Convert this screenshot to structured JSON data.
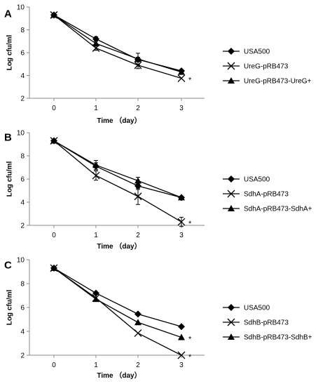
{
  "chart_data": [
    {
      "type": "line",
      "panel_label": "A",
      "xlabel": "Time （day）",
      "ylabel": "Log cfu/ml",
      "x": [
        0,
        1,
        2,
        3
      ],
      "ylim": [
        2,
        10
      ],
      "yticks": [
        2,
        4,
        6,
        8,
        10
      ],
      "grid": false,
      "legend_position": "right",
      "series": [
        {
          "name": "USA500",
          "marker": "diamond",
          "values": [
            9.3,
            7.2,
            5.4,
            4.4
          ],
          "errors": [
            0.1,
            0.2,
            0.2,
            0.1
          ]
        },
        {
          "name": "UreG-pRB473",
          "marker": "x",
          "values": [
            9.3,
            6.4,
            4.9,
            3.75
          ],
          "errors": [
            0.1,
            0.2,
            0.3,
            0.1
          ]
        },
        {
          "name": "UreG-pRB473-UreG+",
          "marker": "triangle",
          "values": [
            9.3,
            6.8,
            5.45,
            4.3
          ],
          "errors": [
            0.1,
            0.2,
            0.5,
            0.1
          ]
        }
      ],
      "annotations": [
        {
          "text": "*",
          "x": 3,
          "y": 3.75
        }
      ]
    },
    {
      "type": "line",
      "panel_label": "B",
      "xlabel": "Time （day）",
      "ylabel": "Log cfu/ml",
      "x": [
        0,
        1,
        2,
        3
      ],
      "ylim": [
        2,
        10
      ],
      "yticks": [
        2,
        4,
        6,
        8,
        10
      ],
      "grid": false,
      "legend_position": "right",
      "series": [
        {
          "name": "USA500",
          "marker": "diamond",
          "values": [
            9.3,
            7.1,
            5.4,
            4.4
          ],
          "errors": [
            0.1,
            0.3,
            0.3,
            0.1
          ]
        },
        {
          "name": "SdhA-pRB473",
          "marker": "x",
          "values": [
            9.3,
            6.3,
            4.5,
            2.3
          ],
          "errors": [
            0.1,
            0.4,
            0.7,
            0.4
          ]
        },
        {
          "name": "SdhA-pRB473-SdhA+",
          "marker": "triangle",
          "values": [
            9.3,
            7.2,
            5.85,
            4.4
          ],
          "errors": [
            0.1,
            0.4,
            0.3,
            0.1
          ]
        }
      ],
      "annotations": [
        {
          "text": "*",
          "x": 3,
          "y": 2.3
        }
      ]
    },
    {
      "type": "line",
      "panel_label": "C",
      "xlabel": "Time （day）",
      "ylabel": "Log cfu/ml",
      "x": [
        0,
        1,
        2,
        3
      ],
      "ylim": [
        2,
        10
      ],
      "yticks": [
        2,
        4,
        6,
        8,
        10
      ],
      "grid": false,
      "legend_position": "right",
      "series": [
        {
          "name": "USA500",
          "marker": "diamond",
          "values": [
            9.3,
            7.2,
            5.45,
            4.4
          ],
          "errors": [
            0.1,
            0.1,
            0.1,
            0.1
          ]
        },
        {
          "name": "SdhB-pRB473",
          "marker": "x",
          "values": [
            9.3,
            6.8,
            3.85,
            2.0
          ],
          "errors": [
            0.1,
            0.1,
            0.1,
            0.1
          ]
        },
        {
          "name": "SdhB-pRB473-SdhB+",
          "marker": "triangle",
          "values": [
            9.3,
            6.7,
            4.75,
            3.5
          ],
          "errors": [
            0.1,
            0.1,
            0.1,
            0.1
          ]
        }
      ],
      "annotations": [
        {
          "text": "*",
          "x": 3,
          "y": 3.5
        },
        {
          "text": "*",
          "x": 3,
          "y": 2.0
        }
      ]
    }
  ]
}
